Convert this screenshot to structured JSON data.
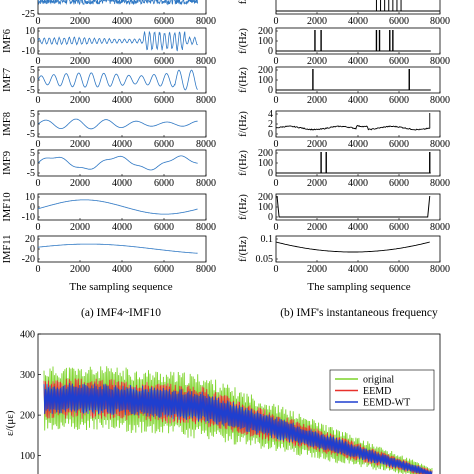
{
  "left_panels": [
    {
      "ylabel": "",
      "ylim": [
        -25,
        25
      ],
      "ytick_labels": [
        "-25"
      ],
      "series_color": "#2f78c4",
      "kind": "top-partial"
    },
    {
      "ylabel": "IMF6",
      "ylim": [
        -10,
        10
      ],
      "ytick_labels": [
        "10",
        "0",
        "-10"
      ],
      "series_color": "#2f78c4",
      "kind": "imf6"
    },
    {
      "ylabel": "IMF7",
      "ylim": [
        -5,
        5
      ],
      "ytick_labels": [
        "5",
        "0",
        "-5"
      ],
      "series_color": "#2f78c4",
      "kind": "imf7"
    },
    {
      "ylabel": "IMF8",
      "ylim": [
        -5,
        5
      ],
      "ytick_labels": [
        "5",
        "0",
        "-5"
      ],
      "series_color": "#2f78c4",
      "kind": "imf8"
    },
    {
      "ylabel": "IMF9",
      "ylim": [
        -5,
        5
      ],
      "ytick_labels": [
        "5",
        "0",
        "-5"
      ],
      "series_color": "#2f78c4",
      "kind": "imf9"
    },
    {
      "ylabel": "IMF10",
      "ylim": [
        -10,
        10
      ],
      "ytick_labels": [
        "10",
        "0",
        "-10"
      ],
      "series_color": "#2f78c4",
      "kind": "imf10"
    },
    {
      "ylabel": "IMF11",
      "ylim": [
        -20,
        20
      ],
      "ytick_labels": [
        "20",
        "0",
        "-20"
      ],
      "series_color": "#2f78c4",
      "kind": "imf11"
    }
  ],
  "right_panels": [
    {
      "ylabel": "f/",
      "ytick_labels": [],
      "kind": "top-partial"
    },
    {
      "ylabel": "f/(Hz)",
      "ytick_labels": [
        "200",
        "100",
        "0"
      ],
      "kind": "spikes",
      "spikes": [
        1900,
        2200,
        4900,
        5050,
        5550,
        5700
      ]
    },
    {
      "ylabel": "f/(Hz)",
      "ytick_labels": [
        "200",
        "100",
        "0"
      ],
      "kind": "spikes",
      "spikes": [
        1800,
        6500
      ]
    },
    {
      "ylabel": "f/(Hz)",
      "ytick_labels": [
        "4",
        "2",
        "0"
      ],
      "kind": "imf8freq"
    },
    {
      "ylabel": "f/(Hz)",
      "ytick_labels": [
        "200",
        "100",
        "0"
      ],
      "kind": "spikes",
      "spikes": [
        2200,
        2450,
        7500
      ]
    },
    {
      "ylabel": "f/(Hz)",
      "ytick_labels": [
        "200",
        "100",
        "0"
      ],
      "kind": "imf10freq"
    },
    {
      "ylabel": "f/(Hz)",
      "ytick_labels": [
        "0.1",
        "0.05"
      ],
      "kind": "imf11freq"
    }
  ],
  "x_ticks": [
    "0",
    "2000",
    "4000",
    "6000",
    "8000"
  ],
  "x_label": "The sampling sequence",
  "caption_left": "(a) IMF4~IMF10",
  "caption_right": "(b) IMF's instantaneous frequency",
  "chart_data": {
    "type": "line",
    "ylabel": "ε/(με)",
    "ylim": [
      40,
      400
    ],
    "yticks": [
      100,
      200,
      300,
      400
    ],
    "legend": [
      "original",
      "EEMD",
      "EEMD-WT"
    ],
    "legend_position": "upper-right",
    "series": [
      {
        "name": "original",
        "color": "#7dd42a",
        "approx_mean_start": 240,
        "approx_mean_end": 55
      },
      {
        "name": "EEMD",
        "color": "#e8312b",
        "approx_mean_start": 240,
        "approx_mean_end": 55
      },
      {
        "name": "EEMD-WT",
        "color": "#1f3fcf",
        "approx_mean_start": 240,
        "approx_mean_end": 55
      }
    ]
  }
}
